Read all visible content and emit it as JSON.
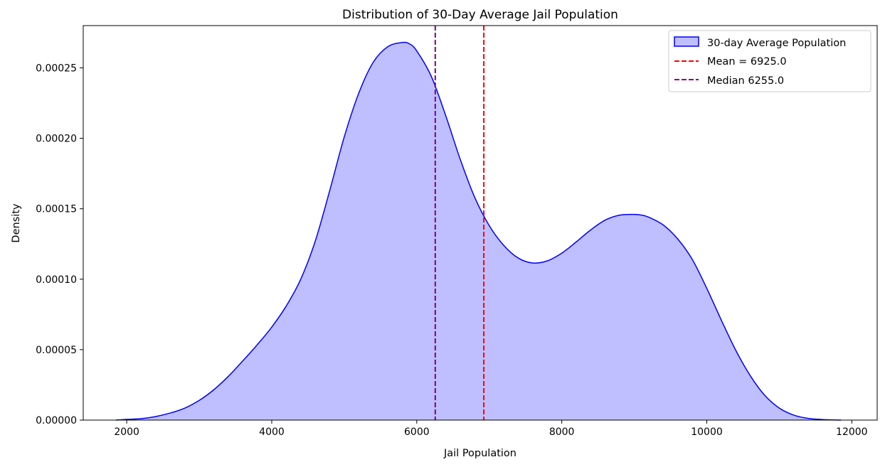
{
  "chart_data": {
    "type": "area",
    "title": "Distribution of 30-Day Average Jail Population",
    "xlabel": "Jail Population",
    "ylabel": "Density",
    "xlim": [
      1400,
      12350
    ],
    "ylim": [
      0,
      0.00028
    ],
    "xticks": [
      2000,
      4000,
      6000,
      8000,
      10000,
      12000
    ],
    "xtick_labels": [
      "2000",
      "4000",
      "6000",
      "8000",
      "10000",
      "12000"
    ],
    "yticks": [
      0,
      5e-05,
      0.0001,
      0.00015,
      0.0002,
      0.00025
    ],
    "ytick_labels": [
      "0.00000",
      "0.00005",
      "0.00010",
      "0.00015",
      "0.00020",
      "0.00025"
    ],
    "grid": false,
    "legend_placement": "top-right",
    "series": [
      {
        "name": "30-day Average Population",
        "kind": "kde",
        "color": "#0000ff",
        "fill_color": "#bfbfff",
        "x": [
          1850,
          2000,
          2200,
          2400,
          2600,
          2800,
          3000,
          3200,
          3400,
          3600,
          3800,
          4000,
          4200,
          4400,
          4600,
          4800,
          5000,
          5200,
          5400,
          5600,
          5800,
          5900,
          6000,
          6200,
          6400,
          6600,
          6800,
          7000,
          7200,
          7400,
          7600,
          7800,
          8000,
          8200,
          8400,
          8600,
          8800,
          9000,
          9100,
          9200,
          9400,
          9600,
          9800,
          10000,
          10200,
          10400,
          10600,
          10800,
          11000,
          11200,
          11400,
          11600,
          11850
        ],
        "y": [
          0.0,
          5e-07,
          1e-06,
          2.5e-06,
          5e-06,
          8.5e-06,
          1.4e-05,
          2.15e-05,
          3.1e-05,
          4.2e-05,
          5.35e-05,
          6.6e-05,
          8.1e-05,
          0.0001,
          0.000127,
          0.000163,
          0.000201,
          0.000232,
          0.000254,
          0.000265,
          0.000268,
          0.000267,
          0.000262,
          0.000244,
          0.000216,
          0.000185,
          0.000158,
          0.000138,
          0.000124,
          0.000115,
          0.0001115,
          0.000113,
          0.0001185,
          0.0001265,
          0.000135,
          0.000142,
          0.0001455,
          0.000146,
          0.0001455,
          0.000144,
          0.0001385,
          0.0001285,
          0.000114,
          9.35e-05,
          7.1e-05,
          4.95e-05,
          3.15e-05,
          1.75e-05,
          8.5e-06,
          3.5e-06,
          1.2e-06,
          4e-07,
          0.0
        ]
      },
      {
        "name": "Mean = 6925.0",
        "kind": "vline",
        "x": 6925.0,
        "color": "#ff0000",
        "linestyle": "dashed"
      },
      {
        "name": "Median 6255.0",
        "kind": "vline",
        "x": 6255.0,
        "color": "#800080",
        "linestyle": "dashed"
      }
    ]
  }
}
